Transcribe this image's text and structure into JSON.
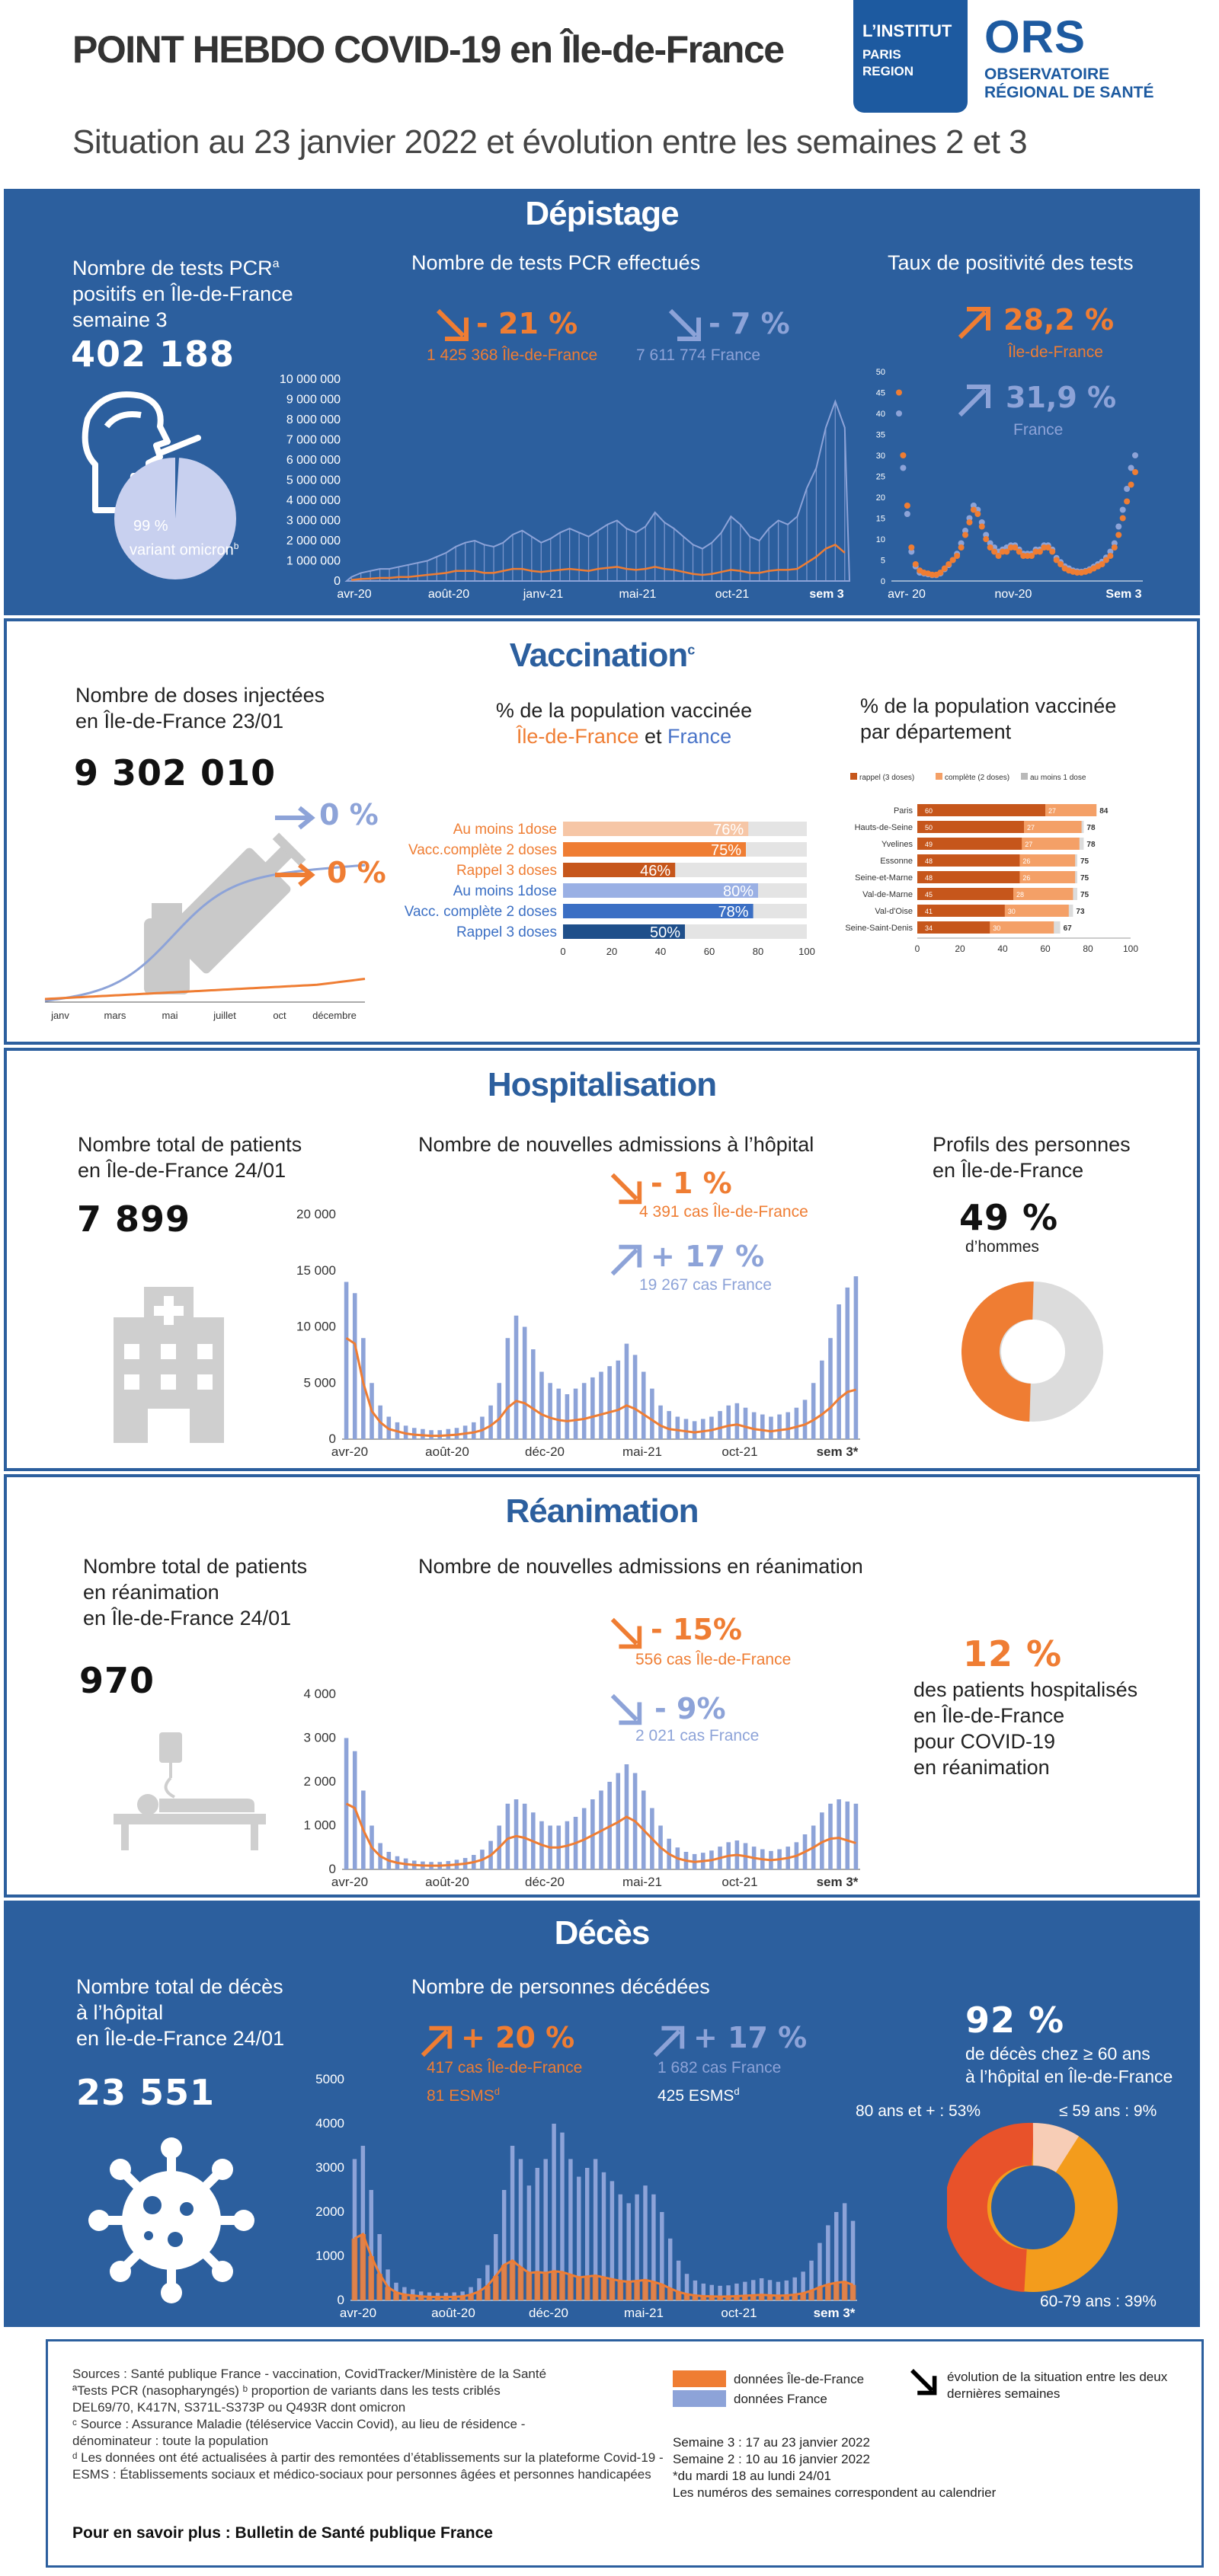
{
  "header": {
    "title": "POINT HEBDO COVID-19 en Île-de-France",
    "subtitle": "Situation au 23 janvier 2022 et évolution entre les semaines 2 et 3",
    "logo1": [
      "L’INSTITUT",
      "PARIS",
      "REGION"
    ],
    "logo2_name": "ORS",
    "logo2_lines": [
      "OBSERVATOIRE",
      "RÉGIONAL DE SANTÉ"
    ]
  },
  "colors": {
    "blue": "#2c5f9e",
    "orange": "#ef7d33",
    "lightblue": "#8da3d8",
    "grey": "#dcdcdc"
  },
  "depistage": {
    "title": "Dépistage",
    "left_label": [
      "Nombre de tests PCR",
      "positifs en Île-de-France",
      "semaine 3"
    ],
    "left_label_sup": "a",
    "left_value": "402 188",
    "pie_pct": "99 %",
    "pie_label": "variant omicron",
    "pie_sup": "b",
    "mid_label": "Nombre de tests PCR effectués",
    "idf_change": "- 21 %",
    "idf_detail": "1 425 368 Île-de-France",
    "fr_change": "- 7 %",
    "fr_detail": "7 611 774  France",
    "right_label": "Taux de positivité des tests",
    "pos_idf": "28,2 %",
    "pos_idf_label": "Île-de-France",
    "pos_fr": "31,9 %",
    "pos_fr_label": "France"
  },
  "vaccination": {
    "title": "Vaccination",
    "title_sup": "c",
    "left_label": [
      "Nombre de doses injectées",
      "en Île-de-France 23/01"
    ],
    "left_value": "9 302 010",
    "fr_change": "0 %",
    "idf_change": "0 %",
    "mid_label": "% de la population vaccinée",
    "mid_sub_idf": "Île-de-France",
    "mid_sub_and": "et",
    "mid_sub_fr": "France",
    "right_label": [
      "% de la population vaccinée",
      "par département"
    ],
    "legend": [
      "rappel (3 doses)",
      "complète (2 doses)",
      "au moins 1 dose"
    ]
  },
  "hospitalisation": {
    "title": "Hospitalisation",
    "left_label": [
      "Nombre total de patients",
      "en Île-de-France 24/01"
    ],
    "left_value": "7 899",
    "mid_label": "Nombre de nouvelles admissions à l’hôpital",
    "idf_change": "- 1 %",
    "idf_detail": "4 391 cas Île-de-France",
    "fr_change": "+ 17 %",
    "fr_detail": "19 267 cas France",
    "right_label": [
      "Profils des personnes",
      "en Île-de-France"
    ],
    "men_pct": "49 %",
    "men_label": "d’hommes"
  },
  "reanimation": {
    "title": "Réanimation",
    "left_label": [
      "Nombre total de patients",
      "en réanimation",
      "en Île-de-France 24/01"
    ],
    "left_value": "970",
    "mid_label": "Nombre de nouvelles admissions en réanimation",
    "idf_change": "- 15%",
    "idf_detail": "556 cas Île-de-France",
    "fr_change": "- 9%",
    "fr_detail": "2 021 cas France",
    "right_pct": "12 %",
    "right_text": [
      "des patients hospitalisés",
      "en Île-de-France",
      "pour COVID-19",
      "en réanimation"
    ]
  },
  "deces": {
    "title": "Décès",
    "left_label": [
      "Nombre total de décès",
      "à l’hôpital",
      "en Île-de-France 24/01"
    ],
    "left_value": "23 551",
    "mid_label": "Nombre de personnes décédées",
    "idf_change": "+ 20 %",
    "idf_detail": "417 cas Île-de-France",
    "idf_esms": "81 ESMS",
    "fr_change": "+ 17 %",
    "fr_detail": "1 682 cas France",
    "fr_esms": "425 ESMS",
    "esms_sup": "d",
    "right_pct": "92 %",
    "right_text": [
      "de décès chez ≥ 60 ans",
      "à l’hôpital en Île-de-France"
    ],
    "donut_labels": [
      "80 ans et + : 53%",
      "≤ 59 ans : 9%",
      "60-79 ans : 39%"
    ]
  },
  "footer": {
    "sources": [
      "Sources : Santé publique France - vaccination, CovidTracker/Ministère de la Santé",
      "ªTests PCR (nasopharyngés) ᵇ proportion de variants dans les tests criblés",
      "DEL69/70, K417N, S371L-S373P ou Q493R dont omicron",
      "ᶜ Source : Assurance Maladie (téléservice Vaccin Covid), au lieu de résidence -",
      "dénominateur : toute la population",
      "ᵈ Les données ont été actualisées à partir des remontées d’établissements sur la plateforme Covid-19 -",
      "ESMS : Établissements sociaux et  médico-sociaux pour personnes âgées et personnes handicapées"
    ],
    "more": "Pour en savoir plus : Bulletin de Santé publique France",
    "legend_idf": "données Île-de-France",
    "legend_fr": "données France",
    "legend_arrow": [
      "évolution de la situation entre les deux",
      "dernières semaines"
    ],
    "weeks": [
      "Semaine 3 :  17 au 23 janvier 2022",
      "Semaine 2 :  10 au 16 janvier 2022",
      "*du mardi 18 au lundi 24/01",
      "Les numéros des semaines correspondent au calendrier"
    ]
  },
  "chart_data": [
    {
      "type": "area",
      "name": "tests",
      "ylim": [
        0,
        10000000
      ],
      "yticks": [
        "10 000 000",
        "9 000 000",
        "8 000 000",
        "7 000 000",
        "6 000 000",
        "5 000 000",
        "4 000 000",
        "3 000 000",
        "2 000 000",
        "1 000 000",
        "0"
      ],
      "xticks": [
        "avr-20",
        "août-20",
        "janv-21",
        "mai-21",
        "oct-21",
        "sem 3"
      ],
      "series": [
        {
          "values": [
            0.2,
            0.4,
            0.5,
            0.6,
            0.6,
            0.7,
            0.8,
            0.9,
            1.0,
            1.2,
            1.4,
            1.7,
            1.9,
            2.0,
            1.8,
            1.7,
            1.9,
            2.3,
            2.5,
            2.2,
            1.9,
            2.1,
            2.4,
            2.6,
            2.4,
            2.2,
            2.5,
            2.8,
            3.0,
            2.6,
            2.4,
            2.7,
            3.4,
            2.9,
            2.6,
            2.2,
            1.8,
            1.6,
            1.9,
            2.4,
            3.2,
            2.8,
            2.2,
            2.0,
            2.6,
            3.0,
            2.8,
            3.2,
            4.6,
            5.6,
            7.6,
            8.9,
            7.6
          ]
        },
        {
          "values": [
            0.05,
            0.1,
            0.12,
            0.15,
            0.15,
            0.2,
            0.2,
            0.25,
            0.3,
            0.35,
            0.4,
            0.5,
            0.5,
            0.5,
            0.4,
            0.4,
            0.5,
            0.6,
            0.6,
            0.5,
            0.45,
            0.5,
            0.55,
            0.6,
            0.55,
            0.5,
            0.6,
            0.65,
            0.7,
            0.6,
            0.55,
            0.6,
            0.7,
            0.6,
            0.55,
            0.45,
            0.35,
            0.3,
            0.35,
            0.45,
            0.55,
            0.5,
            0.4,
            0.4,
            0.5,
            0.55,
            0.55,
            0.6,
            0.9,
            1.2,
            1.6,
            1.8,
            1.4
          ]
        }
      ]
    },
    {
      "type": "scatter",
      "name": "positivite",
      "ylim": [
        0,
        50
      ],
      "yticks": [
        "50",
        "45",
        "40",
        "35",
        "30",
        "25",
        "20",
        "15",
        "10",
        "5",
        "0"
      ],
      "xticks": [
        "avr- 20",
        "nov-20",
        "Sem 3"
      ],
      "series": [
        {
          "values": [
            45,
            30,
            18,
            8,
            4,
            2.5,
            2,
            1.8,
            1.5,
            1.5,
            2,
            3,
            4,
            5,
            6,
            8,
            11,
            14,
            17,
            16,
            13,
            10,
            8,
            7,
            6,
            7,
            7,
            8,
            8,
            7,
            6,
            6,
            6,
            7,
            7,
            8,
            8,
            7,
            5,
            4,
            3,
            2.5,
            2.2,
            2,
            2,
            2.2,
            2.5,
            3,
            3.5,
            4,
            5,
            6,
            8,
            11,
            15,
            19,
            23,
            26
          ]
        },
        {
          "values": [
            40,
            27,
            16,
            7,
            3.5,
            2,
            1.8,
            1.6,
            1.4,
            1.4,
            1.8,
            2.8,
            3.8,
            5,
            6.5,
            9,
            12,
            15,
            18,
            17,
            14,
            11,
            9,
            8,
            7,
            7.5,
            8,
            8.5,
            8.5,
            7.5,
            6.5,
            6.5,
            6.5,
            7.5,
            7.5,
            8.5,
            8.5,
            7.5,
            5.5,
            4.5,
            3.5,
            3,
            2.5,
            2.3,
            2.2,
            2.4,
            2.8,
            3.4,
            4,
            4.6,
            5.6,
            7,
            9,
            13,
            17,
            22,
            27,
            30
          ]
        }
      ]
    },
    {
      "type": "line",
      "name": "doses",
      "xticks": [
        "janv",
        "mars",
        "mai",
        "juillet",
        "oct",
        "décembre"
      ]
    },
    {
      "type": "bar",
      "name": "couverture",
      "categories": [
        "Au moins 1dose",
        "Vacc.complète 2 doses",
        "Rappel 3 doses",
        "Au moins 1dose",
        "Vacc. complète 2 doses",
        "Rappel 3 doses"
      ],
      "series": [
        {
          "values": [
            76,
            75,
            46,
            80,
            78,
            50
          ]
        }
      ],
      "data_labels": [
        "76%",
        "75%",
        "46%",
        "80%",
        "78%",
        "50%"
      ],
      "xticks": [
        "0",
        "20",
        "40",
        "60",
        "80",
        "100"
      ],
      "xlim": [
        0,
        100
      ]
    },
    {
      "type": "bar",
      "name": "departements",
      "categories": [
        "Paris",
        "Hauts-de-Seine",
        "Yvelines",
        "Essonne",
        "Seine-et-Marne",
        "Val-de-Marne",
        "Val-d'Oise",
        "Seine-Saint-Denis"
      ],
      "series": [
        {
          "name": "rappel (3 doses)",
          "values": [
            60,
            50,
            49,
            48,
            48,
            45,
            41,
            34
          ]
        },
        {
          "name": "complète (2 doses)",
          "values": [
            27,
            27,
            27,
            26,
            26,
            28,
            30,
            30
          ]
        },
        {
          "name": "au moins 1 dose",
          "values": [
            84,
            78,
            78,
            75,
            75,
            75,
            73,
            67
          ]
        }
      ],
      "label_values": [
        [
          "60",
          "27",
          "84"
        ],
        [
          "50",
          "27",
          "78"
        ],
        [
          "49",
          "27",
          "78"
        ],
        [
          "48",
          "26",
          "75"
        ],
        [
          "48",
          "26",
          "75"
        ],
        [
          "45",
          "28",
          "75"
        ],
        [
          "41",
          "30",
          "73"
        ],
        [
          "34",
          "30",
          "67"
        ]
      ],
      "xticks": [
        "0",
        "20",
        "40",
        "60",
        "80",
        "100"
      ]
    },
    {
      "type": "bar",
      "name": "hospitalisations",
      "ylim": [
        0,
        20000
      ],
      "yticks": [
        "20 000",
        "15 000",
        "10 000",
        "5 000",
        "0"
      ],
      "xticks": [
        "avr-20",
        "août-20",
        "déc-20",
        "mai-21",
        "oct-21",
        "sem 3*"
      ],
      "series": [
        {
          "values": [
            14000,
            13000,
            9000,
            5000,
            3000,
            2000,
            1500,
            1200,
            1000,
            900,
            800,
            800,
            900,
            1000,
            1200,
            1500,
            2000,
            3000,
            5000,
            9000,
            11000,
            10000,
            8000,
            6000,
            5000,
            4500,
            4000,
            4500,
            5000,
            5500,
            6000,
            6500,
            7000,
            8500,
            7500,
            6000,
            4500,
            3000,
            2500,
            2000,
            1800,
            1600,
            1800,
            2000,
            2500,
            3000,
            3200,
            2800,
            2400,
            2200,
            2000,
            2200,
            2400,
            2800,
            3500,
            5000,
            7000,
            9000,
            12000,
            13500,
            14500
          ]
        },
        {
          "values": [
            9000,
            8500,
            5000,
            2500,
            1500,
            900,
            700,
            500,
            400,
            350,
            300,
            300,
            350,
            400,
            500,
            600,
            800,
            1200,
            1800,
            2800,
            3400,
            3200,
            2700,
            2200,
            1900,
            1700,
            1600,
            1700,
            1800,
            2000,
            2200,
            2400,
            2600,
            3000,
            2700,
            2200,
            1700,
            1200,
            900,
            800,
            700,
            600,
            700,
            800,
            1000,
            1200,
            1300,
            1100,
            900,
            800,
            700,
            800,
            900,
            1100,
            1300,
            1700,
            2200,
            2800,
            3600,
            4200,
            4400
          ]
        }
      ]
    },
    {
      "type": "bar",
      "name": "reanimations",
      "ylim": [
        0,
        4000
      ],
      "yticks": [
        "4 000",
        "3 000",
        "2 000",
        "1 000",
        "0"
      ],
      "xticks": [
        "avr-20",
        "août-20",
        "déc-20",
        "mai-21",
        "oct-21",
        "sem 3*"
      ],
      "series": [
        {
          "values": [
            3000,
            2700,
            1800,
            1000,
            600,
            400,
            300,
            250,
            200,
            180,
            170,
            170,
            190,
            220,
            260,
            330,
            450,
            650,
            1000,
            1500,
            1600,
            1500,
            1300,
            1100,
            1000,
            1000,
            1100,
            1200,
            1400,
            1600,
            1800,
            2000,
            2200,
            2400,
            2200,
            1800,
            1400,
            1000,
            700,
            500,
            400,
            350,
            380,
            430,
            520,
            620,
            660,
            600,
            520,
            460,
            420,
            460,
            520,
            620,
            800,
            1000,
            1300,
            1500,
            1600,
            1550,
            1500
          ]
        },
        {
          "values": [
            1500,
            1400,
            900,
            500,
            300,
            200,
            150,
            120,
            100,
            90,
            85,
            85,
            95,
            110,
            130,
            165,
            220,
            320,
            500,
            700,
            760,
            720,
            640,
            560,
            500,
            500,
            540,
            600,
            680,
            780,
            880,
            980,
            1080,
            1200,
            1100,
            900,
            700,
            500,
            350,
            250,
            200,
            170,
            190,
            210,
            260,
            310,
            330,
            300,
            260,
            230,
            210,
            230,
            260,
            310,
            400,
            500,
            620,
            700,
            720,
            660,
            600
          ]
        }
      ]
    },
    {
      "type": "bar",
      "name": "deces",
      "ylim": [
        0,
        5000
      ],
      "yticks": [
        "5000",
        "4000",
        "3000",
        "2000",
        "1000",
        "0"
      ],
      "xticks": [
        "avr-20",
        "août-20",
        "déc-20",
        "mai-21",
        "oct-21",
        "sem 3*"
      ],
      "series": [
        {
          "values": [
            3200,
            3500,
            2500,
            1500,
            700,
            400,
            300,
            250,
            200,
            180,
            170,
            170,
            180,
            200,
            300,
            500,
            800,
            1500,
            2500,
            3500,
            3200,
            2600,
            3000,
            3200,
            4000,
            3800,
            3200,
            2800,
            3000,
            3200,
            2900,
            2700,
            2400,
            2200,
            2400,
            2600,
            2400,
            2000,
            1400,
            900,
            600,
            450,
            380,
            350,
            330,
            340,
            380,
            420,
            460,
            500,
            460,
            420,
            450,
            520,
            650,
            900,
            1300,
            1700,
            2000,
            2200,
            1800
          ]
        },
        {
          "values": [
            1400,
            1500,
            1000,
            600,
            300,
            180,
            130,
            110,
            90,
            80,
            75,
            75,
            80,
            90,
            130,
            200,
            330,
            550,
            800,
            900,
            750,
            620,
            640,
            620,
            660,
            640,
            580,
            520,
            540,
            560,
            520,
            480,
            440,
            420,
            440,
            460,
            420,
            360,
            270,
            190,
            140,
            110,
            95,
            90,
            85,
            88,
            95,
            105,
            115,
            125,
            115,
            105,
            112,
            130,
            160,
            220,
            300,
            360,
            400,
            420,
            350
          ]
        }
      ]
    }
  ]
}
